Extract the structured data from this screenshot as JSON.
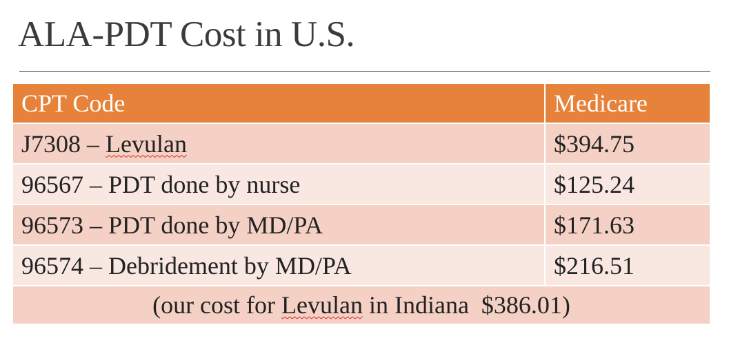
{
  "title": "ALA-PDT Cost in U.S.",
  "table": {
    "headers": [
      "CPT Code",
      "Medicare"
    ],
    "rows": [
      {
        "code_prefix": "J7308 – ",
        "code_name": "Levulan",
        "medicare": "$394.75"
      },
      {
        "code": "96567 – PDT done by nurse",
        "medicare": "$125.24"
      },
      {
        "code": "96573 – PDT done by MD/PA",
        "medicare": "$171.63"
      },
      {
        "code": "96574 – Debridement by MD/PA",
        "medicare": "$216.51"
      }
    ],
    "footer": {
      "before": "(our cost for ",
      "name": "Levulan",
      "after": " in Indiana  $386.01)"
    }
  },
  "colors": {
    "header_bg": "#e7823a",
    "row_dark": "#f4d1c4",
    "row_light": "#f9e8e2",
    "spellcheck_underline": "#d9262b"
  }
}
